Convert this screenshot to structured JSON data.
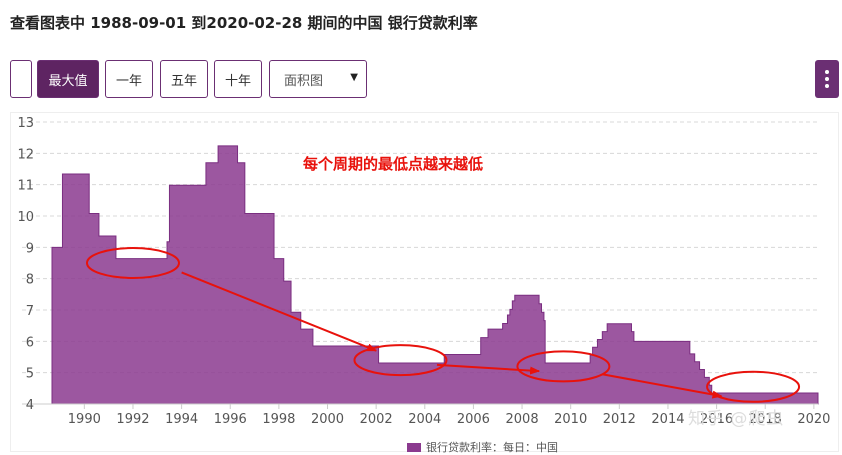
{
  "page": {
    "title": "查看图表中 1988-09-01 到2020-02-28 期间的中国 银行贷款利率"
  },
  "toolbar": {
    "max_label": "最大值",
    "one_year_label": "一年",
    "five_year_label": "五年",
    "ten_year_label": "十年",
    "chart_type_value": "面积图",
    "menu_icon": "vertical-dots-icon"
  },
  "watermark": "知乎 @爬虫",
  "colors": {
    "accent": "#5e2462",
    "area_fill": "#8b3a8f",
    "annotation_red": "#e8120c"
  },
  "chart_data": {
    "type": "area",
    "title": "查看图表中 1988-09-01 到2020-02-28 期间的中国 银行贷款利率",
    "xlabel": "",
    "ylabel": "",
    "xlim": [
      1988.67,
      2020.17
    ],
    "ylim": [
      4,
      13
    ],
    "yticks": [
      4,
      5,
      6,
      7,
      8,
      9,
      10,
      11,
      12,
      13
    ],
    "xticks": [
      1990,
      1992,
      1994,
      1996,
      1998,
      2000,
      2002,
      2004,
      2006,
      2008,
      2010,
      2012,
      2014,
      2016,
      2018,
      2020
    ],
    "grid": true,
    "legend_position": "bottom",
    "series": [
      {
        "name": "银行贷款利率：每日：中国",
        "step": true,
        "x": [
          1988.67,
          1989.1,
          1990.2,
          1990.6,
          1991.3,
          1993.4,
          1993.5,
          1995.0,
          1995.5,
          1996.3,
          1996.6,
          1997.8,
          1998.2,
          1998.5,
          1998.9,
          1999.4,
          2002.1,
          2004.8,
          2006.3,
          2006.6,
          2007.2,
          2007.4,
          2007.5,
          2007.6,
          2007.7,
          2007.8,
          2007.9,
          2008.0,
          2008.7,
          2008.8,
          2008.9,
          2008.95,
          2010.8,
          2010.9,
          2011.1,
          2011.3,
          2011.5,
          2012.5,
          2012.6,
          2014.9,
          2015.1,
          2015.3,
          2015.5,
          2015.7,
          2015.8,
          2019.6,
          2020.17
        ],
        "values": [
          9.0,
          11.34,
          10.08,
          9.36,
          8.64,
          9.18,
          10.98,
          11.7,
          12.24,
          11.7,
          10.08,
          8.64,
          7.92,
          6.93,
          6.39,
          5.85,
          5.31,
          5.58,
          6.12,
          6.39,
          6.57,
          6.84,
          7.02,
          7.29,
          7.47,
          7.47,
          7.47,
          7.47,
          7.2,
          6.93,
          6.66,
          5.31,
          5.56,
          5.81,
          6.06,
          6.31,
          6.56,
          6.31,
          6.0,
          5.6,
          5.35,
          5.1,
          4.85,
          4.6,
          4.35,
          4.35,
          4.35
        ]
      }
    ],
    "annotations": [
      {
        "type": "text",
        "text": "每个周期的最低点越来越低",
        "color": "#e8120c"
      },
      {
        "type": "ellipse",
        "cx": 1992.0,
        "cy": 8.5,
        "color": "#e8120c"
      },
      {
        "type": "ellipse",
        "cx": 2003.0,
        "cy": 5.4,
        "color": "#e8120c"
      },
      {
        "type": "ellipse",
        "cx": 2009.7,
        "cy": 5.2,
        "color": "#e8120c"
      },
      {
        "type": "ellipse",
        "cx": 2017.5,
        "cy": 4.55,
        "color": "#e8120c"
      },
      {
        "type": "arrow",
        "from": [
          1994.0,
          8.2
        ],
        "to": [
          2002.0,
          5.7
        ],
        "color": "#e8120c"
      },
      {
        "type": "arrow",
        "from": [
          2004.5,
          5.25
        ],
        "to": [
          2008.7,
          5.05
        ],
        "color": "#e8120c"
      },
      {
        "type": "arrow",
        "from": [
          2011.3,
          4.95
        ],
        "to": [
          2016.2,
          4.25
        ],
        "color": "#e8120c"
      }
    ]
  }
}
